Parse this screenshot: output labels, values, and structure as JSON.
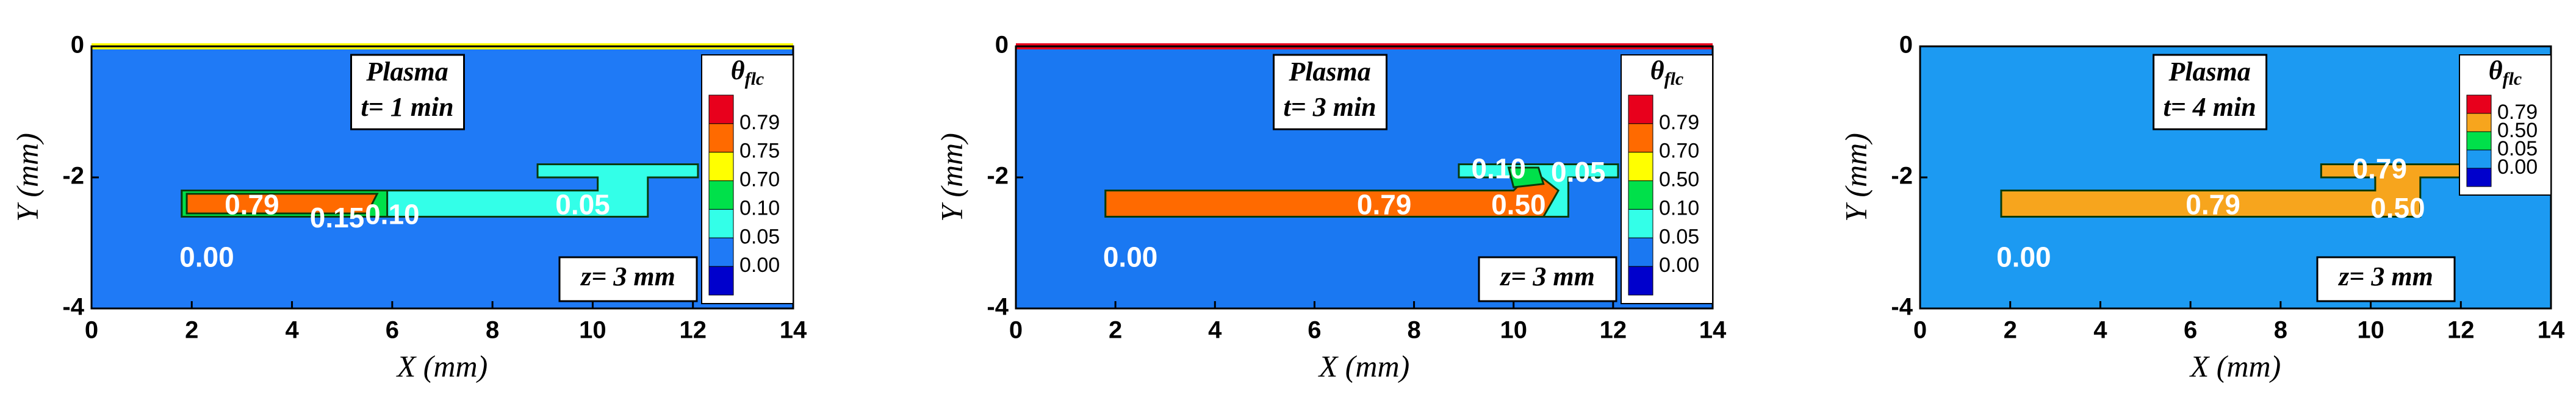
{
  "chart_data": [
    {
      "type": "contour",
      "annotation": "Plasma",
      "time_label": "t= 1 min",
      "position_label": "z= 3 mm",
      "xlabel": "X (mm)",
      "ylabel": "Y (mm)",
      "xlim": [
        0,
        14
      ],
      "ylim": [
        -4,
        0
      ],
      "xticks": [
        0,
        2,
        4,
        6,
        8,
        10,
        12,
        14
      ],
      "yticks": [
        -4,
        -2,
        0
      ],
      "background_color": "#1f7af6",
      "top_boundary_color": "#ffff00",
      "regions": [
        {
          "value": 0.05,
          "color": "#33ffe8",
          "polygon": [
            [
              1.8,
              -2.2
            ],
            [
              10.1,
              -2.2
            ],
            [
              10.1,
              -2.0
            ],
            [
              8.9,
              -2.0
            ],
            [
              8.9,
              -1.8
            ],
            [
              12.1,
              -1.8
            ],
            [
              12.1,
              -2.0
            ],
            [
              11.1,
              -2.0
            ],
            [
              11.1,
              -2.6
            ],
            [
              1.8,
              -2.6
            ]
          ]
        },
        {
          "value": 0.1,
          "color": "#00e04a",
          "polygon": [
            [
              1.8,
              -2.2
            ],
            [
              5.9,
              -2.2
            ],
            [
              5.9,
              -2.6
            ],
            [
              1.8,
              -2.6
            ]
          ]
        },
        {
          "value": 0.75,
          "color": "#ff6a00",
          "polygon": [
            [
              1.9,
              -2.25
            ],
            [
              5.7,
              -2.25
            ],
            [
              5.5,
              -2.55
            ],
            [
              1.9,
              -2.55
            ]
          ]
        }
      ],
      "contour_labels": [
        {
          "value": 0.79,
          "label": "0.79",
          "x": 3.2,
          "y": -2.45
        },
        {
          "value": 0.15,
          "label": "0.15",
          "x": 4.9,
          "y": -2.65
        },
        {
          "value": 0.1,
          "label": "0.10",
          "x": 6.0,
          "y": -2.6
        },
        {
          "value": 0.05,
          "label": "0.05",
          "x": 9.8,
          "y": -2.45
        },
        {
          "value": 0,
          "label": "0.00",
          "x": 2.3,
          "y": -3.25
        }
      ],
      "legend": {
        "title": "θ",
        "title_subscript": "flc",
        "colors": [
          "#e8001c",
          "#ff6a00",
          "#ffff00",
          "#00e04a",
          "#33ffe8",
          "#1f7af6",
          "#0000cc"
        ],
        "levels": [
          {
            "value": 0.79,
            "label": "0.79"
          },
          {
            "value": 0.75,
            "label": "0.75"
          },
          {
            "value": 0.7,
            "label": "0.70"
          },
          {
            "value": 0.1,
            "label": "0.10"
          },
          {
            "value": 0.05,
            "label": "0.05"
          },
          {
            "value": 0,
            "label": "0.00"
          }
        ]
      }
    },
    {
      "type": "contour",
      "annotation": "Plasma",
      "time_label": "t= 3 min",
      "position_label": "z= 3 mm",
      "xlabel": "X (mm)",
      "ylabel": "Y (mm)",
      "xlim": [
        0,
        14
      ],
      "ylim": [
        -4,
        0
      ],
      "xticks": [
        0,
        2,
        4,
        6,
        8,
        10,
        12,
        14
      ],
      "yticks": [
        -4,
        -2,
        0
      ],
      "background_color": "#1a78f2",
      "top_boundary_color": "#e8001c",
      "regions": [
        {
          "value": 0.05,
          "color": "#33ffe8",
          "polygon": [
            [
              1.8,
              -2.2
            ],
            [
              10.1,
              -2.2
            ],
            [
              10.1,
              -2.0
            ],
            [
              8.9,
              -2.0
            ],
            [
              8.9,
              -1.8
            ],
            [
              12.1,
              -1.8
            ],
            [
              12.1,
              -2.0
            ],
            [
              11.1,
              -2.0
            ],
            [
              11.1,
              -2.6
            ],
            [
              1.8,
              -2.6
            ]
          ]
        },
        {
          "value": 0.7,
          "color": "#ff6a00",
          "polygon": [
            [
              1.8,
              -2.2
            ],
            [
              10.0,
              -2.2
            ],
            [
              10.4,
              -1.9
            ],
            [
              10.9,
              -2.2
            ],
            [
              10.6,
              -2.6
            ],
            [
              1.8,
              -2.6
            ]
          ]
        },
        {
          "value": 0.1,
          "color": "#00e04a",
          "polygon": [
            [
              9.9,
              -1.85
            ],
            [
              10.5,
              -1.85
            ],
            [
              10.6,
              -2.1
            ],
            [
              10.0,
              -2.15
            ]
          ]
        }
      ],
      "contour_labels": [
        {
          "value": 0.79,
          "label": "0.79",
          "x": 7.4,
          "y": -2.45
        },
        {
          "value": 0.1,
          "label": "0.10",
          "x": 9.7,
          "y": -1.9
        },
        {
          "value": 0.5,
          "label": "0.50",
          "x": 10.1,
          "y": -2.45
        },
        {
          "value": 0.05,
          "label": "0.05",
          "x": 11.3,
          "y": -1.95
        },
        {
          "value": 0,
          "label": "0.00",
          "x": 2.3,
          "y": -3.25
        }
      ],
      "legend": {
        "title": "θ",
        "title_subscript": "flc",
        "colors": [
          "#e8001c",
          "#ff6a00",
          "#ffff00",
          "#00e04a",
          "#33ffe8",
          "#1a78f2",
          "#0000cc"
        ],
        "levels": [
          {
            "value": 0.79,
            "label": "0.79"
          },
          {
            "value": 0.7,
            "label": "0.70"
          },
          {
            "value": 0.5,
            "label": "0.50"
          },
          {
            "value": 0.1,
            "label": "0.10"
          },
          {
            "value": 0.05,
            "label": "0.05"
          },
          {
            "value": 0,
            "label": "0.00"
          }
        ]
      }
    },
    {
      "type": "contour",
      "annotation": "Plasma",
      "time_label": "t= 4 min",
      "position_label": "z= 3 mm",
      "xlabel": "X (mm)",
      "ylabel": "Y (mm)",
      "xlim": [
        0,
        14
      ],
      "ylim": [
        -4,
        0
      ],
      "xticks": [
        0,
        2,
        4,
        6,
        8,
        10,
        12,
        14
      ],
      "yticks": [
        -4,
        -2,
        0
      ],
      "background_color": "#1c9af2",
      "regions": [
        {
          "value": 0.5,
          "color": "#f7a51d",
          "polygon": [
            [
              1.8,
              -2.2
            ],
            [
              10.1,
              -2.2
            ],
            [
              10.1,
              -2.0
            ],
            [
              8.9,
              -2.0
            ],
            [
              8.9,
              -1.8
            ],
            [
              12.1,
              -1.8
            ],
            [
              12.1,
              -2.0
            ],
            [
              11.1,
              -2.0
            ],
            [
              11.1,
              -2.6
            ],
            [
              1.8,
              -2.6
            ]
          ]
        }
      ],
      "contour_labels": [
        {
          "value": 0.79,
          "label": "0.79",
          "x": 6.5,
          "y": -2.45
        },
        {
          "value": 0.79,
          "label": "0.79",
          "x": 10.2,
          "y": -1.9
        },
        {
          "value": 0.5,
          "label": "0.50",
          "x": 10.6,
          "y": -2.5
        },
        {
          "value": 0,
          "label": "0.00",
          "x": 2.3,
          "y": -3.25
        }
      ],
      "legend": {
        "title": "θ",
        "title_subscript": "flc",
        "colors": [
          "#e8001c",
          "#f7a51d",
          "#00e04a",
          "#1c9af2",
          "#0000cc"
        ],
        "levels": [
          {
            "value": 0.79,
            "label": "0.79"
          },
          {
            "value": 0.5,
            "label": "0.50"
          },
          {
            "value": 0.05,
            "label": "0.05"
          },
          {
            "value": 0,
            "label": "0.00"
          }
        ]
      }
    }
  ]
}
